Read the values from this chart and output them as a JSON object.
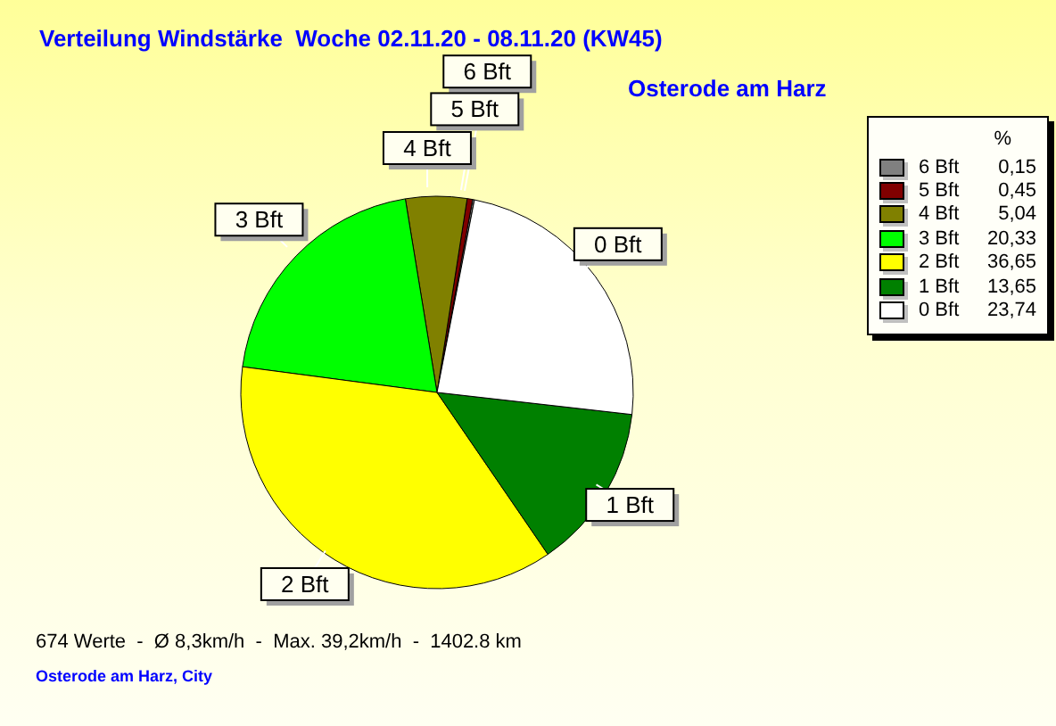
{
  "chart_data": {
    "type": "pie",
    "title": "Verteilung Windstärke  Woche 02.11.20 - 08.11.20 (KW45)",
    "subtitle": "Osterode am Harz",
    "legend_title": "%",
    "legend": "top right",
    "categories": [
      "6 Bft",
      "5 Bft",
      "4 Bft",
      "3 Bft",
      "2 Bft",
      "1 Bft",
      "0 Bft"
    ],
    "values": [
      0.15,
      0.45,
      5.04,
      20.33,
      36.65,
      13.65,
      23.74
    ],
    "value_labels": [
      "0,15",
      "0,45",
      "5,04",
      "20,33",
      "36,65",
      "13,65",
      "23,74"
    ],
    "colors": [
      "#808080",
      "#800000",
      "#808000",
      "#00ff00",
      "#ffff00",
      "#008000",
      "#ffffff"
    ],
    "annotations": [
      "674 Werte  -  Ø 8,3km/h  -  Max. 39,2km/h  -  1402.8 km",
      "Osterode am Harz, City"
    ]
  }
}
